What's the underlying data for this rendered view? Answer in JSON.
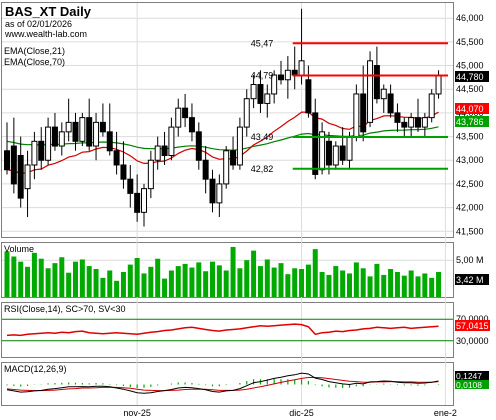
{
  "header": {
    "title": "BAS_XT Daily",
    "subtitle": "as of 02/01/2026",
    "website": "www.wealth-lab.com"
  },
  "colors": {
    "background": "#ffffff",
    "frame": "#7f7f7f",
    "grid": "#dcdcdc",
    "candle_up": "#ffffff",
    "candle_down": "#000000",
    "ema21": "#d00000",
    "ema70": "#008000",
    "volume": "#00aa00",
    "rsi": "#e00000",
    "rsi_band": "#008000",
    "macd_line": "#000000",
    "macd_signal": "#cc0000",
    "macd_hist": "#00aa00",
    "level_red": "#ff0000",
    "level_green": "#00a000",
    "badge_black": "#000000",
    "badge_red": "#ff0000",
    "badge_green": "#00a000"
  },
  "chart_data": [
    {
      "panel": "price",
      "type": "candlestick",
      "legend": [
        "EMA(Close,21)",
        "EMA(Close,70)"
      ],
      "ylim": [
        41400,
        46300
      ],
      "y_ticks": [
        "46,000",
        "45,500",
        "45,000",
        "44,500",
        "44,000",
        "43,500",
        "43,000",
        "42,500",
        "42,000",
        "41,500"
      ],
      "y_tick_values": [
        46000,
        45500,
        45000,
        44500,
        44000,
        43500,
        43000,
        42500,
        42000,
        41500
      ],
      "x_ticks": [
        {
          "label": "nov-25",
          "index": 19
        },
        {
          "label": "dic-25",
          "index": 43
        },
        {
          "label": "ene-2",
          "index": 64
        }
      ],
      "candles": [
        {
          "o": 43.2,
          "h": 43.8,
          "l": 42.7,
          "c": 42.8
        },
        {
          "o": 43.3,
          "h": 43.9,
          "l": 42.3,
          "c": 42.5
        },
        {
          "o": 43.1,
          "h": 43.5,
          "l": 42.0,
          "c": 42.2
        },
        {
          "o": 42.4,
          "h": 43.2,
          "l": 41.8,
          "c": 42.9
        },
        {
          "o": 42.9,
          "h": 43.6,
          "l": 42.6,
          "c": 43.4
        },
        {
          "o": 43.4,
          "h": 43.7,
          "l": 42.8,
          "c": 43.0
        },
        {
          "o": 43.0,
          "h": 43.9,
          "l": 42.9,
          "c": 43.7
        },
        {
          "o": 43.7,
          "h": 44.0,
          "l": 43.2,
          "c": 43.3
        },
        {
          "o": 43.3,
          "h": 43.8,
          "l": 43.1,
          "c": 43.6
        },
        {
          "o": 43.6,
          "h": 44.3,
          "l": 43.4,
          "c": 43.8
        },
        {
          "o": 43.8,
          "h": 44.0,
          "l": 43.2,
          "c": 43.4
        },
        {
          "o": 43.4,
          "h": 44.0,
          "l": 43.3,
          "c": 43.9
        },
        {
          "o": 43.9,
          "h": 44.3,
          "l": 43.2,
          "c": 43.3
        },
        {
          "o": 43.3,
          "h": 44.0,
          "l": 43.0,
          "c": 43.8
        },
        {
          "o": 43.8,
          "h": 44.2,
          "l": 43.5,
          "c": 43.6
        },
        {
          "o": 43.6,
          "h": 44.2,
          "l": 43.1,
          "c": 43.2
        },
        {
          "o": 43.2,
          "h": 43.6,
          "l": 42.7,
          "c": 42.9
        },
        {
          "o": 42.9,
          "h": 43.4,
          "l": 42.4,
          "c": 42.6
        },
        {
          "o": 42.6,
          "h": 42.9,
          "l": 42.0,
          "c": 42.3
        },
        {
          "o": 42.3,
          "h": 42.7,
          "l": 41.7,
          "c": 41.9
        },
        {
          "o": 41.9,
          "h": 42.5,
          "l": 41.6,
          "c": 42.4
        },
        {
          "o": 42.4,
          "h": 43.2,
          "l": 42.2,
          "c": 43.0
        },
        {
          "o": 43.0,
          "h": 43.5,
          "l": 42.8,
          "c": 43.3
        },
        {
          "o": 43.3,
          "h": 43.6,
          "l": 42.9,
          "c": 43.1
        },
        {
          "o": 43.1,
          "h": 43.9,
          "l": 43.0,
          "c": 43.7
        },
        {
          "o": 43.7,
          "h": 44.3,
          "l": 43.5,
          "c": 44.1
        },
        {
          "o": 44.1,
          "h": 44.4,
          "l": 43.7,
          "c": 43.9
        },
        {
          "o": 43.9,
          "h": 44.2,
          "l": 43.4,
          "c": 43.6
        },
        {
          "o": 43.6,
          "h": 43.8,
          "l": 42.8,
          "c": 43.0
        },
        {
          "o": 43.0,
          "h": 43.3,
          "l": 42.3,
          "c": 42.6
        },
        {
          "o": 42.6,
          "h": 42.8,
          "l": 41.9,
          "c": 42.1
        },
        {
          "o": 42.1,
          "h": 42.7,
          "l": 41.8,
          "c": 42.5
        },
        {
          "o": 42.5,
          "h": 43.3,
          "l": 42.4,
          "c": 43.2
        },
        {
          "o": 43.2,
          "h": 43.5,
          "l": 42.8,
          "c": 42.9
        },
        {
          "o": 42.9,
          "h": 43.9,
          "l": 42.8,
          "c": 43.7
        },
        {
          "o": 43.7,
          "h": 44.5,
          "l": 43.5,
          "c": 44.3
        },
        {
          "o": 44.3,
          "h": 44.8,
          "l": 44.1,
          "c": 44.6
        },
        {
          "o": 44.6,
          "h": 44.9,
          "l": 44.0,
          "c": 44.2
        },
        {
          "o": 44.2,
          "h": 44.6,
          "l": 43.9,
          "c": 44.4
        },
        {
          "o": 44.4,
          "h": 44.9,
          "l": 44.2,
          "c": 44.8
        },
        {
          "o": 44.8,
          "h": 45.1,
          "l": 44.6,
          "c": 44.7
        },
        {
          "o": 44.7,
          "h": 45.2,
          "l": 44.3,
          "c": 44.9
        },
        {
          "o": 44.9,
          "h": 45.4,
          "l": 44.5,
          "c": 44.8
        },
        {
          "o": 44.8,
          "h": 46.2,
          "l": 44.6,
          "c": 45.1
        },
        {
          "o": 44.7,
          "h": 45.0,
          "l": 43.9,
          "c": 44.0
        },
        {
          "o": 44.0,
          "h": 44.3,
          "l": 42.6,
          "c": 42.7
        },
        {
          "o": 42.8,
          "h": 43.8,
          "l": 42.7,
          "c": 43.6
        },
        {
          "o": 43.4,
          "h": 43.6,
          "l": 42.7,
          "c": 42.9
        },
        {
          "o": 42.9,
          "h": 43.4,
          "l": 42.8,
          "c": 43.3
        },
        {
          "o": 43.3,
          "h": 43.7,
          "l": 42.9,
          "c": 43.0
        },
        {
          "o": 43.0,
          "h": 43.6,
          "l": 42.8,
          "c": 43.5
        },
        {
          "o": 43.5,
          "h": 44.6,
          "l": 43.4,
          "c": 44.4
        },
        {
          "o": 44.4,
          "h": 45.0,
          "l": 43.4,
          "c": 43.6
        },
        {
          "o": 43.8,
          "h": 45.3,
          "l": 43.7,
          "c": 45.1
        },
        {
          "o": 45.0,
          "h": 45.4,
          "l": 44.2,
          "c": 44.3
        },
        {
          "o": 44.3,
          "h": 44.6,
          "l": 44.0,
          "c": 44.5
        },
        {
          "o": 44.4,
          "h": 44.6,
          "l": 43.9,
          "c": 44.0
        },
        {
          "o": 44.0,
          "h": 44.2,
          "l": 43.6,
          "c": 43.8
        },
        {
          "o": 43.8,
          "h": 43.9,
          "l": 43.5,
          "c": 43.7
        },
        {
          "o": 43.7,
          "h": 44.0,
          "l": 43.5,
          "c": 43.9
        },
        {
          "o": 43.9,
          "h": 44.3,
          "l": 43.6,
          "c": 43.7
        },
        {
          "o": 43.7,
          "h": 44.0,
          "l": 43.5,
          "c": 43.9
        },
        {
          "o": 43.9,
          "h": 44.5,
          "l": 43.8,
          "c": 44.4
        },
        {
          "o": 44.4,
          "h": 44.9,
          "l": 44.3,
          "c": 44.8
        }
      ],
      "ema21_last": "44,070",
      "ema70_last": "43,786",
      "close_last": "44,780",
      "levels": [
        {
          "label": "45,47",
          "value": 45470,
          "color": "red",
          "from_index": 42
        },
        {
          "label": "44,79",
          "value": 44790,
          "color": "red",
          "from_index": 42
        },
        {
          "label": "43,49",
          "value": 43490,
          "color": "green",
          "from_index": 42
        },
        {
          "label": "42,82",
          "value": 42820,
          "color": "green",
          "from_index": 42
        }
      ]
    },
    {
      "panel": "volume",
      "type": "bar",
      "title": "Volume",
      "y_ticks": [
        "5,00 M"
      ],
      "y_tick_values": [
        5.0
      ],
      "ylim": [
        0,
        7.2
      ],
      "last_label": "3,42 M",
      "values": [
        6.2,
        5.5,
        4.8,
        4.1,
        6.0,
        5.2,
        3.9,
        4.6,
        5.4,
        3.3,
        4.8,
        5.1,
        4.2,
        3.8,
        2.6,
        3.6,
        2.2,
        3.4,
        4.4,
        5.3,
        3.2,
        4.1,
        5.2,
        2.5,
        3.6,
        4.2,
        4.5,
        4.0,
        4.7,
        3.5,
        4.8,
        4.3,
        3.6,
        6.8,
        3.9,
        5.0,
        6.3,
        4.2,
        5.1,
        4.0,
        4.6,
        3.1,
        3.9,
        3.8,
        4.4,
        6.5,
        3.4,
        3.0,
        4.2,
        3.6,
        3.2,
        4.7,
        3.9,
        2.8,
        4.5,
        3.0,
        3.8,
        3.4,
        2.9,
        3.6,
        2.8,
        3.2,
        2.6,
        3.4
      ]
    },
    {
      "panel": "rsi",
      "type": "line",
      "title": "RSI(Close,14), SC>70, SV<30",
      "ylim": [
        0,
        100
      ],
      "y_ticks": [
        "70,0000",
        "30,0000"
      ],
      "y_tick_values": [
        70,
        30
      ],
      "last_label": "57,0415",
      "values": [
        40,
        41,
        40,
        42,
        43,
        44,
        45,
        44,
        46,
        45,
        47,
        48,
        45,
        44,
        43,
        44,
        45,
        44,
        43,
        42,
        44,
        46,
        47,
        49,
        50,
        52,
        54,
        55,
        53,
        51,
        49,
        48,
        50,
        51,
        52,
        54,
        56,
        58,
        57,
        58,
        59,
        60,
        61,
        60,
        56,
        42,
        45,
        46,
        48,
        47,
        49,
        50,
        52,
        53,
        55,
        54,
        53,
        54,
        55,
        53,
        54,
        55,
        56,
        57
      ]
    },
    {
      "panel": "macd",
      "type": "line",
      "title": "MACD(12,26,9)",
      "ylim": [
        -0.7,
        0.7
      ],
      "macd_last": "0,1247",
      "hist_last": "0,0108",
      "macd": [
        -0.18,
        -0.22,
        -0.26,
        -0.25,
        -0.22,
        -0.2,
        -0.16,
        -0.14,
        -0.11,
        -0.08,
        -0.08,
        -0.07,
        -0.08,
        -0.06,
        -0.06,
        -0.08,
        -0.12,
        -0.16,
        -0.22,
        -0.28,
        -0.3,
        -0.28,
        -0.24,
        -0.21,
        -0.17,
        -0.12,
        -0.1,
        -0.11,
        -0.14,
        -0.18,
        -0.24,
        -0.26,
        -0.22,
        -0.2,
        -0.14,
        -0.04,
        0.06,
        0.1,
        0.15,
        0.21,
        0.25,
        0.3,
        0.33,
        0.39,
        0.36,
        0.22,
        0.17,
        0.1,
        0.06,
        0.02,
        0.0,
        0.04,
        0.02,
        0.09,
        0.1,
        0.12,
        0.11,
        0.08,
        0.06,
        0.06,
        0.04,
        0.05,
        0.08,
        0.12
      ],
      "signal": [
        -0.15,
        -0.17,
        -0.19,
        -0.2,
        -0.21,
        -0.21,
        -0.2,
        -0.19,
        -0.17,
        -0.15,
        -0.14,
        -0.12,
        -0.12,
        -0.11,
        -0.1,
        -0.1,
        -0.1,
        -0.11,
        -0.13,
        -0.16,
        -0.19,
        -0.2,
        -0.21,
        -0.21,
        -0.2,
        -0.19,
        -0.17,
        -0.16,
        -0.16,
        -0.16,
        -0.18,
        -0.2,
        -0.2,
        -0.2,
        -0.19,
        -0.16,
        -0.12,
        -0.08,
        -0.03,
        0.02,
        0.07,
        0.12,
        0.16,
        0.21,
        0.24,
        0.24,
        0.23,
        0.2,
        0.17,
        0.14,
        0.11,
        0.1,
        0.08,
        0.08,
        0.09,
        0.09,
        0.1,
        0.1,
        0.09,
        0.09,
        0.08,
        0.08,
        0.08,
        0.1
      ]
    }
  ]
}
